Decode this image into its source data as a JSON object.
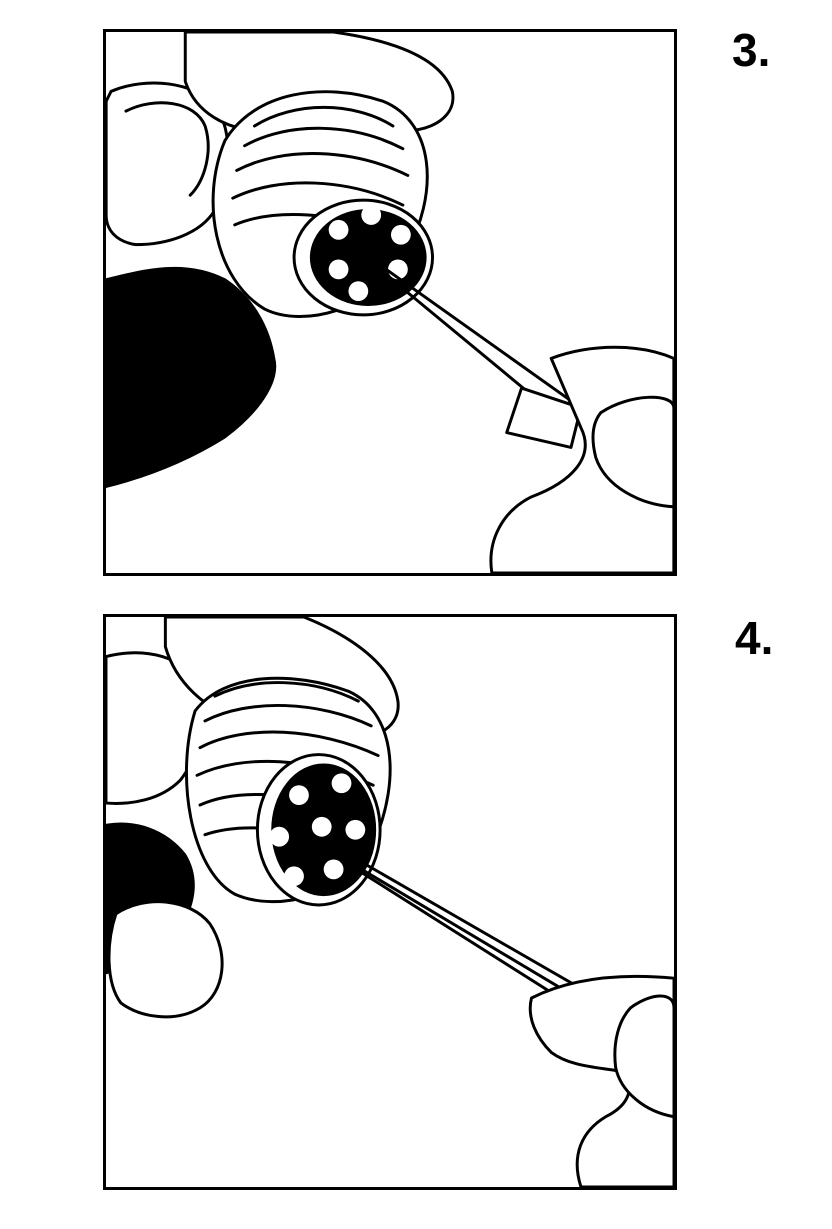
{
  "steps": [
    {
      "number_label": "3.",
      "description_icon": "tweezers-inserting-into-handpiece-icon"
    },
    {
      "number_label": "4.",
      "description_icon": "tweezers-at-handpiece-head-icon"
    }
  ],
  "colors": {
    "ink": "#000000",
    "paper": "#ffffff"
  }
}
